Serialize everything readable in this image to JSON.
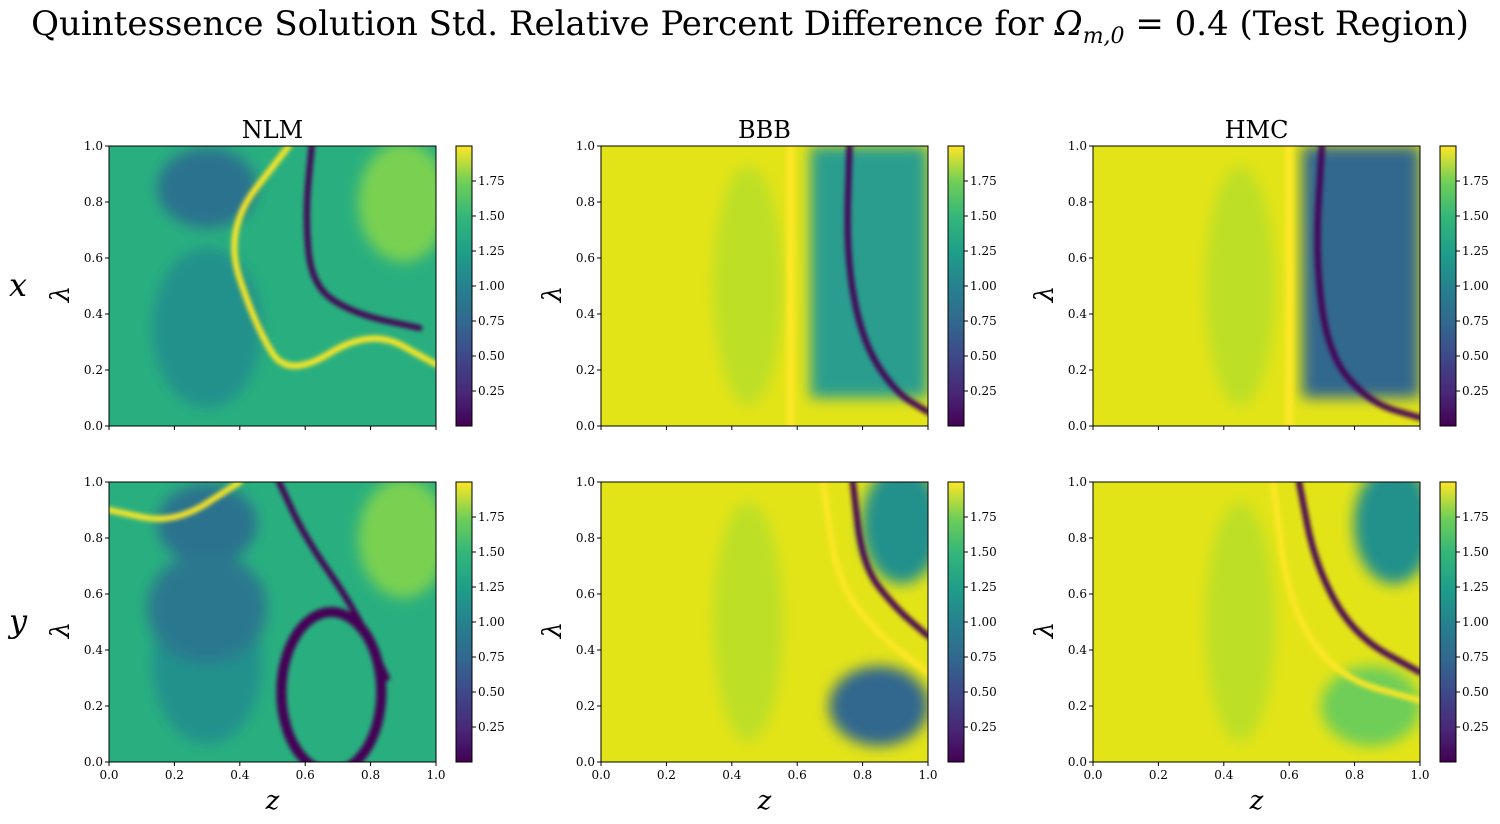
{
  "figure": {
    "title_prefix": "Quintessence Solution Std.  Relative Percent Difference for ",
    "title_math": "Ω",
    "title_sub": "m,0",
    "title_suffix": " = 0.4 (Test Region)"
  },
  "row_labels": [
    "x",
    "y"
  ],
  "col_titles": [
    "NLM",
    "BBB",
    "HMC"
  ],
  "chart_data": {
    "type": "heatmap",
    "xlabel": "z",
    "ylabel": "λ",
    "xlim": [
      0.0,
      1.0
    ],
    "ylim": [
      0.0,
      1.0
    ],
    "xticks": [
      "0.0",
      "0.2",
      "0.4",
      "0.6",
      "0.8",
      "1.0"
    ],
    "yticks": [
      "0.0",
      "0.2",
      "0.4",
      "0.6",
      "0.8",
      "1.0"
    ],
    "colormap": "viridis",
    "colorbar_range": [
      0.0,
      2.0
    ],
    "colorbar_ticks": [
      "0.25",
      "0.50",
      "0.75",
      "1.00",
      "1.25",
      "1.50",
      "1.75"
    ],
    "panels": [
      {
        "row": "x",
        "method": "NLM",
        "features": [
          {
            "kind": "dark curve",
            "z": [
              0.62,
              0.6,
              0.62,
              0.75,
              0.95
            ],
            "lambda": [
              1.0,
              0.75,
              0.5,
              0.4,
              0.35
            ]
          },
          {
            "kind": "bright curve",
            "z": [
              0.55,
              0.35,
              0.45,
              0.55,
              0.8,
              1.0
            ],
            "lambda": [
              1.0,
              0.7,
              0.35,
              0.17,
              0.35,
              0.22
            ]
          }
        ]
      },
      {
        "row": "x",
        "method": "BBB",
        "features": [
          {
            "kind": "bright band",
            "z": [
              0.58,
              0.58
            ],
            "lambda": [
              1.0,
              0.0
            ]
          },
          {
            "kind": "dark curve",
            "z": [
              0.76,
              0.75,
              0.8,
              0.9,
              1.0
            ],
            "lambda": [
              1.0,
              0.6,
              0.3,
              0.12,
              0.05
            ]
          }
        ]
      },
      {
        "row": "x",
        "method": "HMC",
        "features": [
          {
            "kind": "bright band",
            "z": [
              0.6,
              0.6
            ],
            "lambda": [
              1.0,
              0.0
            ]
          },
          {
            "kind": "dark curve",
            "z": [
              0.7,
              0.68,
              0.72,
              0.85,
              1.0
            ],
            "lambda": [
              1.0,
              0.6,
              0.25,
              0.08,
              0.03
            ]
          }
        ]
      },
      {
        "row": "y",
        "method": "NLM",
        "features": [
          {
            "kind": "dark curve",
            "z": [
              0.52,
              0.6,
              0.75,
              0.85
            ],
            "lambda": [
              1.0,
              0.8,
              0.55,
              0.3
            ]
          },
          {
            "kind": "dark ellipse",
            "z": [
              0.68
            ],
            "lambda": [
              0.25
            ]
          },
          {
            "kind": "bright curve",
            "z": [
              0.0,
              0.2,
              0.4
            ],
            "lambda": [
              0.9,
              0.85,
              1.0
            ]
          }
        ]
      },
      {
        "row": "y",
        "method": "BBB",
        "features": [
          {
            "kind": "bright curve",
            "z": [
              0.68,
              0.72,
              0.85,
              1.0
            ],
            "lambda": [
              1.0,
              0.65,
              0.45,
              0.32
            ]
          },
          {
            "kind": "dark curve",
            "z": [
              0.77,
              0.8,
              0.9,
              1.0
            ],
            "lambda": [
              1.0,
              0.7,
              0.55,
              0.45
            ]
          }
        ]
      },
      {
        "row": "y",
        "method": "HMC",
        "features": [
          {
            "kind": "bright curve",
            "z": [
              0.55,
              0.6,
              0.75,
              1.0
            ],
            "lambda": [
              1.0,
              0.55,
              0.3,
              0.22
            ]
          },
          {
            "kind": "dark curve",
            "z": [
              0.63,
              0.68,
              0.8,
              1.0
            ],
            "lambda": [
              1.0,
              0.7,
              0.45,
              0.32
            ]
          }
        ]
      }
    ]
  }
}
